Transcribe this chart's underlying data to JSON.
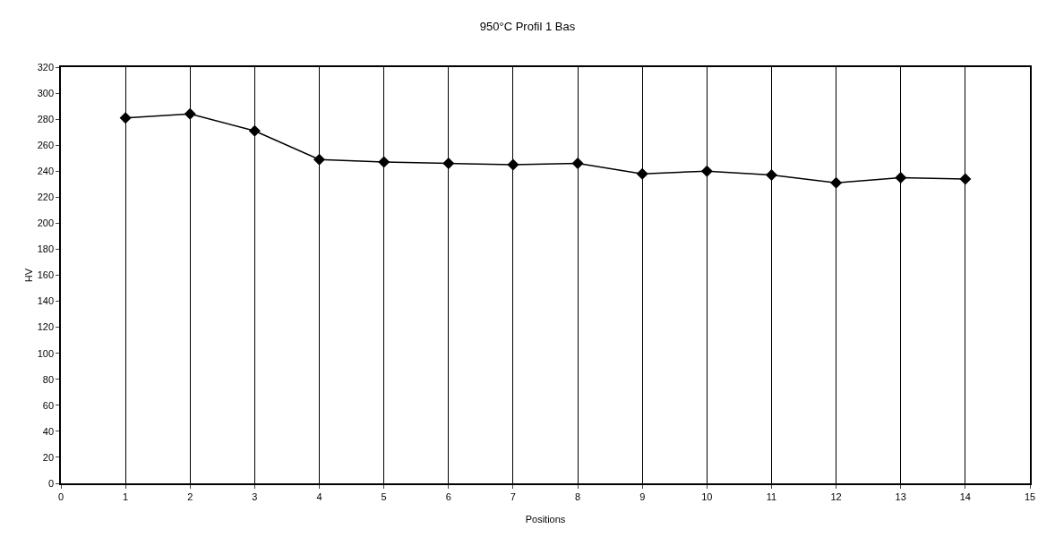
{
  "chart_data": {
    "type": "line",
    "title": "950°C Profil 1 Bas",
    "xlabel": "Positions",
    "ylabel": "HV",
    "x": [
      1,
      2,
      3,
      4,
      5,
      6,
      7,
      8,
      9,
      10,
      11,
      12,
      13,
      14
    ],
    "series": [
      {
        "color": "#000000",
        "values": [
          281,
          284,
          271,
          249,
          247,
          246,
          245,
          246,
          238,
          240,
          237,
          231,
          235,
          234
        ]
      }
    ],
    "xlim": [
      0,
      15
    ],
    "xticks": [
      0,
      1,
      2,
      3,
      4,
      5,
      6,
      7,
      8,
      9,
      10,
      11,
      12,
      13,
      14,
      15
    ],
    "ylim": [
      0,
      320
    ],
    "yticks": [
      0,
      20,
      40,
      60,
      80,
      100,
      120,
      140,
      160,
      180,
      200,
      220,
      240,
      260,
      280,
      300,
      320
    ],
    "grid": "x",
    "marker": "diamond",
    "line_style": "solid"
  }
}
